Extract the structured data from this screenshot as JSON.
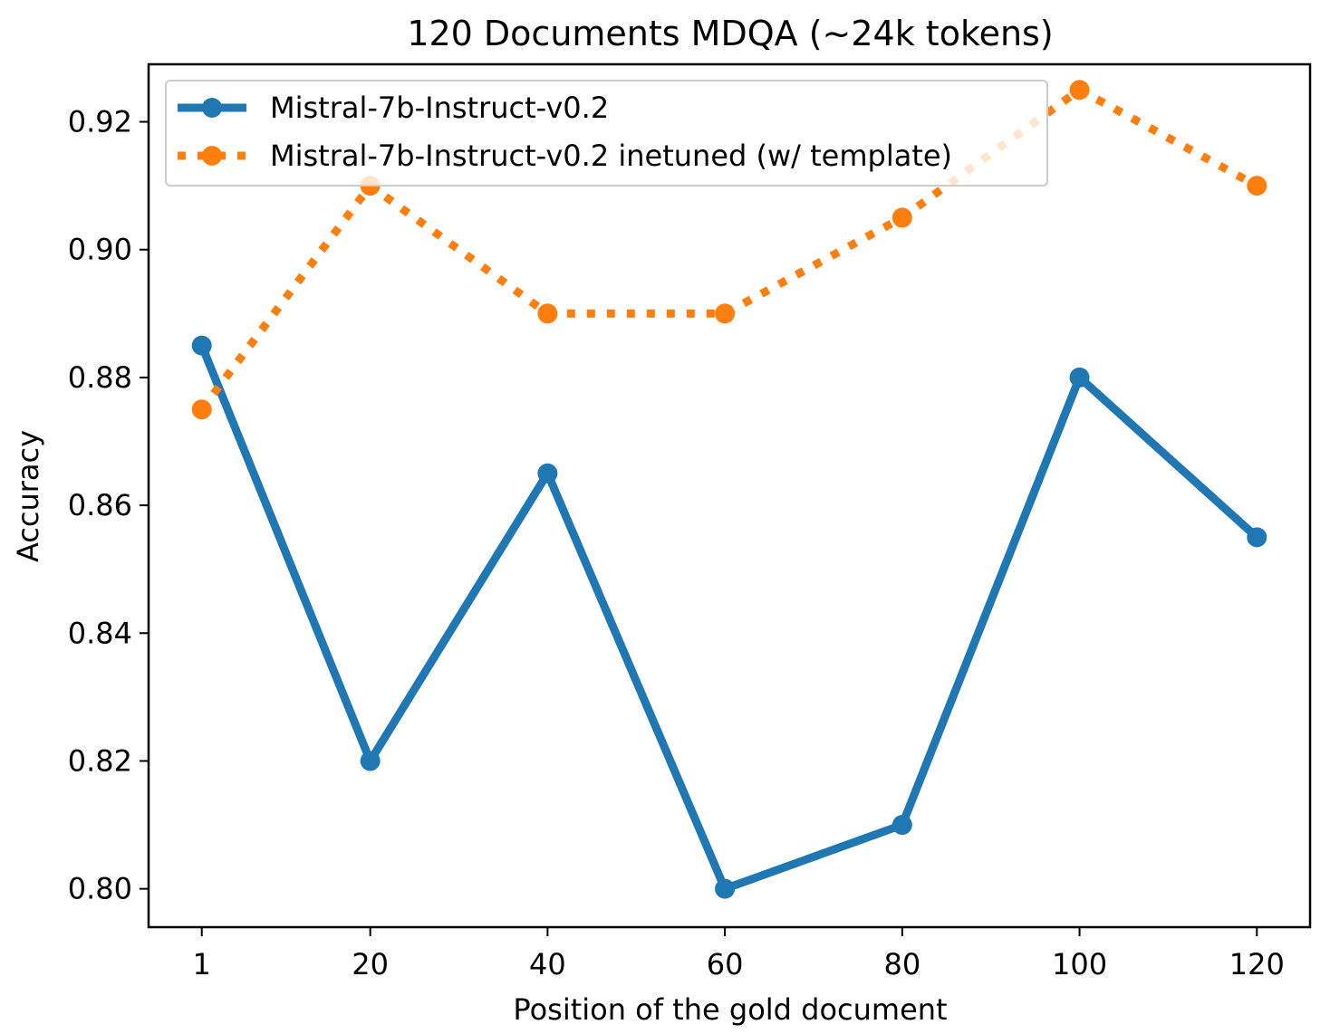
{
  "chart_data": {
    "type": "line",
    "title": "120 Documents MDQA (~24k tokens)",
    "xlabel": "Position of the gold document",
    "ylabel": "Accuracy",
    "x": [
      1,
      20,
      40,
      60,
      80,
      100,
      120
    ],
    "x_tick_labels": [
      "1",
      "20",
      "40",
      "60",
      "80",
      "100",
      "120"
    ],
    "y_ticks": [
      0.8,
      0.82,
      0.84,
      0.86,
      0.88,
      0.9,
      0.92
    ],
    "y_tick_labels": [
      "0.80",
      "0.82",
      "0.84",
      "0.86",
      "0.88",
      "0.90",
      "0.92"
    ],
    "xlim": [
      -5,
      126
    ],
    "ylim": [
      0.794,
      0.929
    ],
    "grid": false,
    "legend_position": "top-left",
    "series": [
      {
        "name": "Mistral-7b-Instruct-v0.2",
        "values": [
          0.885,
          0.82,
          0.865,
          0.8,
          0.81,
          0.88,
          0.855
        ],
        "color": "#1f77b4",
        "line_style": "solid",
        "marker": "circle"
      },
      {
        "name": "Mistral-7b-Instruct-v0.2 inetuned (w/ template)",
        "values": [
          0.875,
          0.91,
          0.89,
          0.89,
          0.905,
          0.925,
          0.91
        ],
        "color": "#ff7f0e",
        "line_style": "dotted",
        "marker": "circle"
      }
    ]
  }
}
